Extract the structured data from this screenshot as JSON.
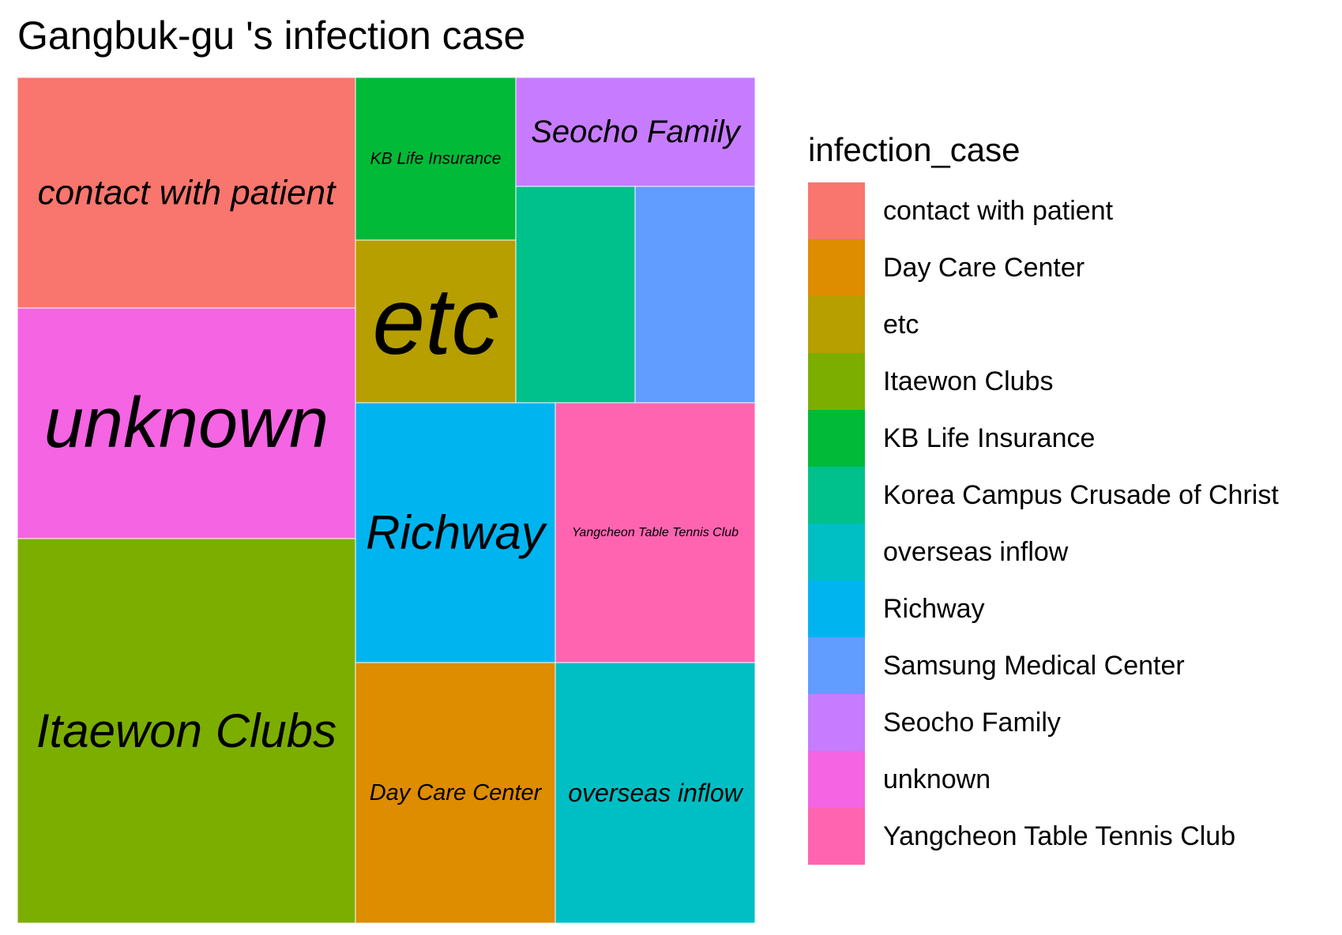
{
  "chart_data": {
    "type": "treemap",
    "title": "Gangbuk-gu 's infection case",
    "legend": {
      "title": "infection_case",
      "placement": "right"
    },
    "categories": [
      {
        "name": "contact with patient",
        "color": "#F8766D",
        "show_label": true
      },
      {
        "name": "Day Care Center",
        "color": "#DE8C00",
        "show_label": true
      },
      {
        "name": "etc",
        "color": "#B79F00",
        "show_label": true
      },
      {
        "name": "Itaewon Clubs",
        "color": "#7CAE00",
        "show_label": true
      },
      {
        "name": "KB Life Insurance",
        "color": "#00BA38",
        "show_label": true
      },
      {
        "name": "Korea Campus Crusade of Christ",
        "color": "#00C08B",
        "show_label": false
      },
      {
        "name": "overseas inflow",
        "color": "#00BFC4",
        "show_label": true
      },
      {
        "name": "Richway",
        "color": "#00B4F0",
        "show_label": true
      },
      {
        "name": "Samsung Medical Center",
        "color": "#619CFF",
        "show_label": false
      },
      {
        "name": "Seocho Family",
        "color": "#C77CFF",
        "show_label": true
      },
      {
        "name": "unknown",
        "color": "#F564E3",
        "show_label": true
      },
      {
        "name": "Yangcheon Table Tennis Club",
        "color": "#FF64B0",
        "show_label": true
      }
    ],
    "relative_area": {
      "contact with patient": 2,
      "unknown": 2,
      "Itaewon Clubs": 3.33,
      "etc": 1,
      "KB Life Insurance": 1,
      "Seocho Family": 0.5,
      "Korea Campus Crusade of Christ": 1,
      "Samsung Medical Center": 1,
      "Richway": 1.67,
      "Yangcheon Table Tennis Club": 1.67,
      "Day Care Center": 1.67,
      "overseas inflow": 1.67
    }
  }
}
